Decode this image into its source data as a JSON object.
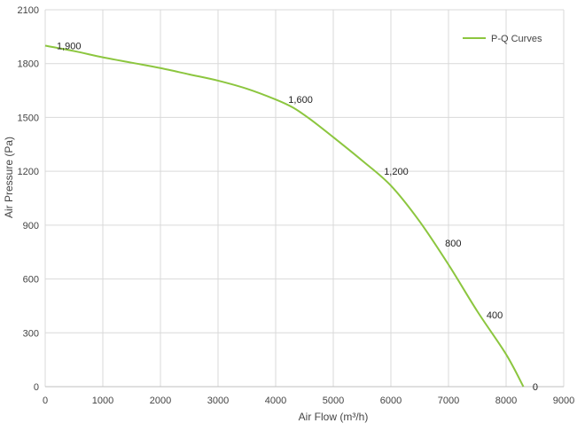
{
  "chart_data": {
    "type": "line",
    "title": "",
    "xlabel": "Air Flow  (m³/h)",
    "ylabel": "Air Pressure  (Pa)",
    "xlim": [
      0,
      9000
    ],
    "ylim": [
      0,
      2100
    ],
    "x_ticks": [
      0,
      1000,
      2000,
      3000,
      4000,
      5000,
      6000,
      7000,
      8000,
      9000
    ],
    "y_ticks": [
      0,
      300,
      600,
      900,
      1200,
      1500,
      1800,
      2100
    ],
    "grid": true,
    "legend_position": "top-right",
    "series": [
      {
        "name": "P-Q Curves",
        "color": "#8cc63f",
        "x": [
          0,
          500,
          1000,
          1500,
          2000,
          2500,
          3000,
          3500,
          4000,
          4300,
          4600,
          5000,
          5500,
          6000,
          6500,
          7000,
          7500,
          8000,
          8300
        ],
        "y": [
          1900,
          1870,
          1835,
          1805,
          1775,
          1740,
          1705,
          1660,
          1600,
          1555,
          1490,
          1390,
          1260,
          1120,
          920,
          680,
          420,
          180,
          0
        ]
      }
    ],
    "annotations": [
      {
        "text": "1,900",
        "x": 200,
        "y": 1900
      },
      {
        "text": "1,600",
        "x": 4220,
        "y": 1600
      },
      {
        "text": "1,200",
        "x": 5880,
        "y": 1200
      },
      {
        "text": "800",
        "x": 6940,
        "y": 800
      },
      {
        "text": "400",
        "x": 7660,
        "y": 400
      },
      {
        "text": "0",
        "x": 8460,
        "y": 0
      }
    ]
  }
}
